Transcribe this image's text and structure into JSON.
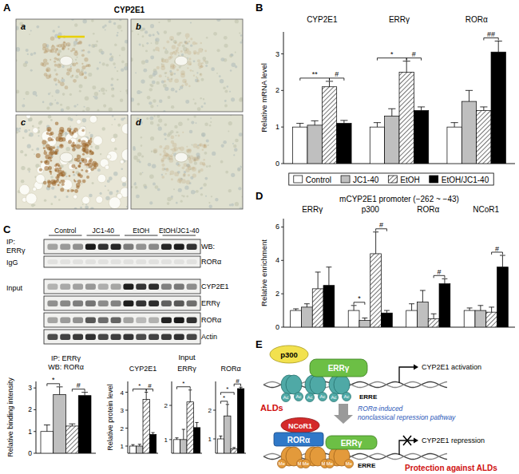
{
  "figure": {
    "panel_labels": [
      "A",
      "B",
      "C",
      "D",
      "E"
    ],
    "panel_a": {
      "title": "CYP2E1",
      "images": [
        "a",
        "b",
        "c",
        "d"
      ]
    },
    "blot": {
      "groups": [
        "Control",
        "JC1-40",
        "EtOH",
        "EtOH/JC1-40"
      ],
      "ip": "IP:",
      "ip_target": "ERRγ",
      "igg": "IgG",
      "wb": "WB:",
      "wb_target": "RORα",
      "input": "Input",
      "rows": [
        "CYP2E1",
        "ERRγ",
        "RORα",
        "Actin"
      ]
    },
    "input_title": "Input",
    "diagram": {
      "coactivator": "p300",
      "receptor": "ERRγ",
      "acetyl": "Ac",
      "element": "ERRE",
      "activation": "CYP2E1 activation",
      "disease": "ALDs",
      "pathway": [
        "RORα-induced",
        "nonclassical repression pathway"
      ],
      "corepressor": "NCoR1",
      "repressor": "RORα",
      "methyl": "Me",
      "repression": "CYP2E1 repression",
      "protection": "Protection against ALDs"
    }
  },
  "chart_data": [
    {
      "type": "bar",
      "categories": [
        "CYP2E1",
        "ERRγ",
        "RORα"
      ],
      "y_label": "Relative mRNA level",
      "ylim": [
        0,
        3.6
      ],
      "yticks": [
        0,
        1,
        2,
        3
      ],
      "legend": "bottom",
      "series": [
        {
          "name": "Control",
          "color": "#ffffff",
          "values": [
            1.0,
            1.0,
            1.0
          ],
          "errors": [
            0.1,
            0.12,
            0.12
          ]
        },
        {
          "name": "JC1-40",
          "color": "#bfbfbf",
          "values": [
            1.05,
            1.3,
            1.7
          ],
          "errors": [
            0.12,
            0.2,
            0.3
          ]
        },
        {
          "name": "EtOH",
          "color": "#ffffff",
          "values": [
            2.1,
            2.5,
            1.45
          ],
          "errors": [
            0.15,
            0.3,
            0.1
          ]
        },
        {
          "name": "EtOH/JC1-40",
          "color": "#000000",
          "values": [
            1.1,
            1.45,
            3.05
          ],
          "errors": [
            0.08,
            0.1,
            0.3
          ]
        }
      ],
      "annotations": [
        {
          "text": "**",
          "category": 0,
          "pair": [
            0,
            2
          ]
        },
        {
          "text": "#",
          "category": 0,
          "pair": [
            2,
            3
          ]
        },
        {
          "text": "*",
          "category": 1,
          "pair": [
            0,
            2
          ]
        },
        {
          "text": "#",
          "category": 1,
          "pair": [
            2,
            3
          ]
        },
        {
          "text": "##",
          "category": 2,
          "pair": [
            2,
            3
          ]
        }
      ]
    },
    {
      "type": "bar",
      "title": "mCYP2E1 promoter (−262 ~ −43)",
      "categories": [
        "ERRγ",
        "p300",
        "RORα",
        "NCoR1"
      ],
      "y_label": "Relative enrichment",
      "ylim": [
        0,
        6.5
      ],
      "yticks": [
        0,
        2,
        4,
        6
      ],
      "series": [
        {
          "color": "#ffffff",
          "values": [
            1.0,
            1.0,
            1.0,
            1.0
          ],
          "errors": [
            0.1,
            0.3,
            0.4,
            0.15
          ]
        },
        {
          "color": "#bfbfbf",
          "values": [
            1.2,
            0.4,
            1.5,
            1.0
          ],
          "errors": [
            0.2,
            0.15,
            0.7,
            0.3
          ]
        },
        {
          "color": "#ffffff",
          "values": [
            2.3,
            4.4,
            0.5,
            0.9
          ],
          "errors": [
            1.0,
            1.3,
            0.3,
            0.3
          ]
        },
        {
          "color": "#000000",
          "values": [
            2.5,
            0.85,
            2.6,
            3.6
          ],
          "errors": [
            1.1,
            0.15,
            0.3,
            0.7
          ]
        }
      ],
      "annotations": [
        {
          "text": "*",
          "category": 1,
          "pair": [
            0,
            1
          ]
        },
        {
          "text": "#",
          "category": 1,
          "pair": [
            2,
            3
          ]
        },
        {
          "text": "#",
          "category": 2,
          "pair": [
            2,
            3
          ]
        },
        {
          "text": "#",
          "category": 3,
          "pair": [
            2,
            3
          ]
        }
      ]
    },
    {
      "type": "bar",
      "title": "IP: ERRγ",
      "subtitle": "WB: RORα",
      "categories": [
        null
      ],
      "y_label": "Relative binding intensity",
      "ylim": [
        0,
        3.3
      ],
      "yticks": [
        0,
        1,
        2,
        3
      ],
      "series": [
        {
          "color": "#ffffff",
          "values": [
            1.0
          ],
          "errors": [
            0.3
          ]
        },
        {
          "color": "#bfbfbf",
          "values": [
            2.7
          ],
          "errors": [
            0.35
          ]
        },
        {
          "color": "#ffffff",
          "values": [
            1.25
          ],
          "errors": [
            0.1
          ]
        },
        {
          "color": "#000000",
          "values": [
            2.65
          ],
          "errors": [
            0.15
          ]
        }
      ],
      "annotations": [
        {
          "text": "*",
          "category": 0,
          "pair": [
            0,
            1
          ]
        },
        {
          "text": "#",
          "category": 0,
          "pair": [
            2,
            3
          ]
        }
      ]
    },
    {
      "type": "bar",
      "title": "CYP2E1",
      "categories": [
        null
      ],
      "y_label": "Relative protein level",
      "ylim": [
        0.6,
        4.6
      ],
      "yticks": [
        1,
        2,
        3,
        4
      ],
      "series": [
        {
          "color": "#ffffff",
          "values": [
            1.0
          ],
          "errors": [
            0.08
          ]
        },
        {
          "color": "#bfbfbf",
          "values": [
            1.0
          ],
          "errors": [
            0.1
          ]
        },
        {
          "color": "#ffffff",
          "values": [
            3.6
          ],
          "errors": [
            0.4
          ]
        },
        {
          "color": "#000000",
          "values": [
            1.65
          ],
          "errors": [
            0.1
          ]
        }
      ],
      "annotations": [
        {
          "text": "*",
          "category": 0,
          "pair": [
            0,
            2
          ]
        },
        {
          "text": "#",
          "category": 0,
          "pair": [
            2,
            3
          ]
        }
      ]
    },
    {
      "type": "bar",
      "title": "ERRγ",
      "categories": [
        null
      ],
      "ylim": [
        0.6,
        2.7
      ],
      "yticks": [
        1,
        2
      ],
      "series": [
        {
          "color": "#ffffff",
          "values": [
            1.0
          ],
          "errors": [
            0.05
          ]
        },
        {
          "color": "#bfbfbf",
          "values": [
            1.0
          ],
          "errors": [
            0.3
          ]
        },
        {
          "color": "#ffffff",
          "values": [
            2.1
          ],
          "errors": [
            0.35
          ]
        },
        {
          "color": "#000000",
          "values": [
            1.35
          ],
          "errors": [
            0.15
          ]
        }
      ],
      "annotations": [
        {
          "text": "*",
          "category": 0,
          "pair": [
            0,
            2
          ]
        }
      ]
    },
    {
      "type": "bar",
      "title": "RORα",
      "categories": [
        null
      ],
      "ylim": [
        0.5,
        3.0
      ],
      "yticks": [
        1,
        2
      ],
      "series": [
        {
          "color": "#ffffff",
          "values": [
            1.0
          ],
          "errors": [
            0.1
          ]
        },
        {
          "color": "#bfbfbf",
          "values": [
            1.8
          ],
          "errors": [
            0.4
          ]
        },
        {
          "color": "#ffffff",
          "values": [
            0.65
          ],
          "errors": [
            0.05
          ]
        },
        {
          "color": "#000000",
          "values": [
            2.75
          ],
          "errors": [
            0.05
          ]
        }
      ],
      "annotations": [
        {
          "text": "*",
          "category": 0,
          "pair": [
            0,
            1
          ]
        },
        {
          "text": "*",
          "category": 0,
          "pair": [
            0,
            2
          ]
        },
        {
          "text": "#",
          "category": 0,
          "pair": [
            2,
            3
          ]
        }
      ]
    }
  ]
}
